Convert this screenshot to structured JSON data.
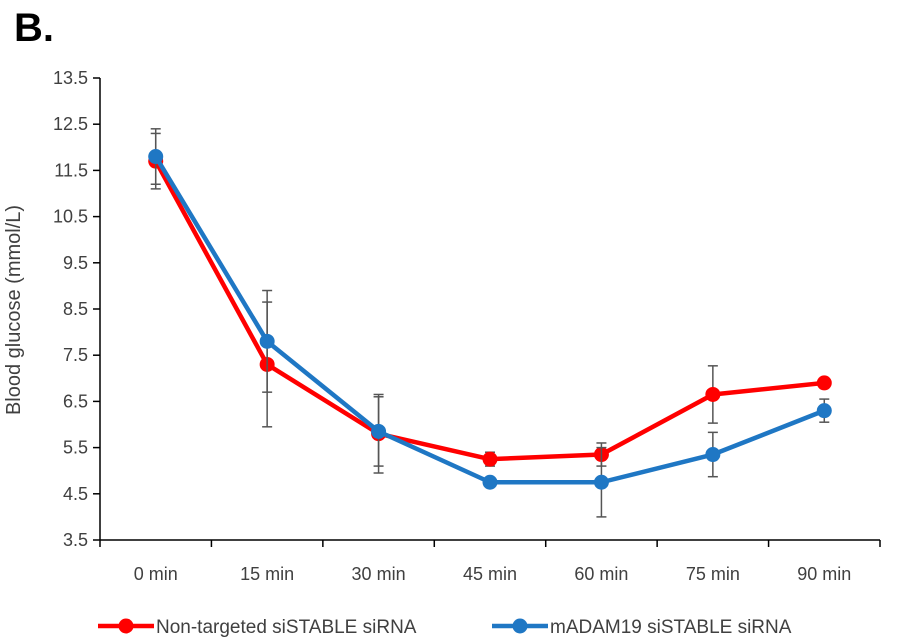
{
  "panel_label": "B.",
  "colors": {
    "series_1": "#ff0000",
    "series_2": "#1f77c4",
    "axis": "#000000",
    "error_bar": "#555555"
  },
  "chart_data": {
    "type": "line",
    "title": "",
    "xlabel": "",
    "ylabel": "Blood glucose (mmol/L)",
    "categories": [
      "0 min",
      "15 min",
      "30 min",
      "45 min",
      "60 min",
      "75 min",
      "90 min"
    ],
    "y_ticks": [
      "3.5",
      "4.5",
      "5.5",
      "6.5",
      "7.5",
      "8.5",
      "9.5",
      "10.5",
      "11.5",
      "12.5",
      "13.5"
    ],
    "ylim": [
      3.5,
      13.5
    ],
    "grid": false,
    "legend_position": "bottom",
    "series": [
      {
        "name": "Non-targeted siSTABLE siRNA",
        "values": [
          11.7,
          7.3,
          5.8,
          5.25,
          5.35,
          6.65,
          6.9
        ],
        "error": [
          0.6,
          1.35,
          0.85,
          0.15,
          0.25,
          0.62,
          0.07
        ]
      },
      {
        "name": "mADAM19 siSTABLE siRNA",
        "values": [
          11.8,
          7.8,
          5.85,
          4.75,
          4.75,
          5.35,
          6.3
        ],
        "error": [
          0.6,
          1.1,
          0.75,
          0.08,
          0.75,
          0.48,
          0.25
        ]
      }
    ]
  }
}
